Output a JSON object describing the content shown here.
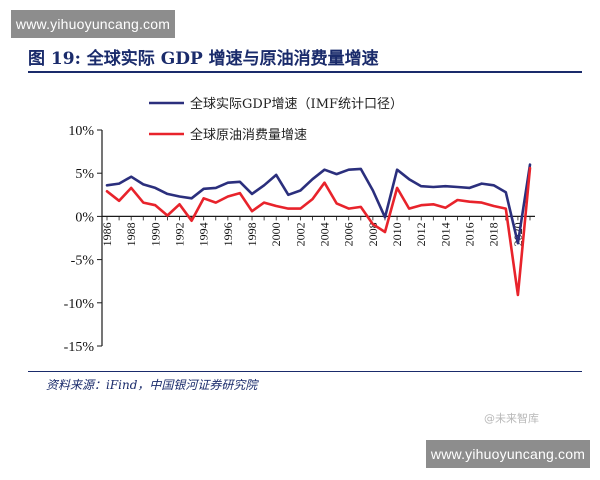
{
  "watermark": {
    "top": "www.yihuoyuncang.com",
    "bottom": "www.yihuoyuncang.com"
  },
  "figure_title": "图 19:  全球实际 GDP 增速与原油消费量增速",
  "source_text": "资料来源：iFind，中国银河证券研究院",
  "brand_mark": "@未来智库",
  "colors": {
    "gdp": "#2b2f7d",
    "oil": "#e8232b",
    "axis": "#1a1a1a",
    "title": "#1a2b6b"
  },
  "chart_data": {
    "type": "line",
    "title": "",
    "xlabel": "",
    "ylabel": "",
    "y_unit": "%",
    "ylim": [
      -15,
      10
    ],
    "yticks": [
      10,
      5,
      0,
      -5,
      -10,
      -15
    ],
    "ytick_labels": [
      "10%",
      "5%",
      "0%",
      "-5%",
      "-10%",
      "-15%"
    ],
    "x_tick_labels": [
      "1986",
      "1988",
      "1990",
      "1992",
      "1994",
      "1996",
      "1998",
      "2000",
      "2002",
      "2004",
      "2006",
      "2008",
      "2010",
      "2012",
      "2014",
      "2016",
      "2018",
      "2020"
    ],
    "legend_position": "top-left",
    "grid": false,
    "x": [
      1986,
      1987,
      1988,
      1989,
      1990,
      1991,
      1992,
      1993,
      1994,
      1995,
      1996,
      1997,
      1998,
      1999,
      2000,
      2001,
      2002,
      2003,
      2004,
      2005,
      2006,
      2007,
      2008,
      2009,
      2010,
      2011,
      2012,
      2013,
      2014,
      2015,
      2016,
      2017,
      2018,
      2019,
      2020,
      2021
    ],
    "series": [
      {
        "name": "全球实际GDP增速（IMF统计口径）",
        "color": "#2b2f7d",
        "values": [
          3.6,
          3.8,
          4.6,
          3.7,
          3.3,
          2.6,
          2.3,
          2.1,
          3.2,
          3.3,
          3.9,
          4.0,
          2.6,
          3.6,
          4.8,
          2.5,
          3.0,
          4.3,
          5.4,
          4.9,
          5.4,
          5.5,
          3.0,
          -0.1,
          5.4,
          4.3,
          3.5,
          3.4,
          3.5,
          3.4,
          3.3,
          3.8,
          3.6,
          2.8,
          -3.1,
          6.0
        ]
      },
      {
        "name": "全球原油消费量增速",
        "color": "#e8232b",
        "values": [
          2.9,
          1.8,
          3.3,
          1.6,
          1.3,
          0.1,
          1.4,
          -0.5,
          2.1,
          1.6,
          2.3,
          2.7,
          0.6,
          1.6,
          1.2,
          0.9,
          0.9,
          2.0,
          3.9,
          1.5,
          0.9,
          1.1,
          -0.9,
          -1.8,
          3.3,
          0.9,
          1.3,
          1.4,
          1.0,
          1.9,
          1.7,
          1.6,
          1.2,
          0.9,
          -9.1,
          5.6
        ]
      }
    ]
  }
}
